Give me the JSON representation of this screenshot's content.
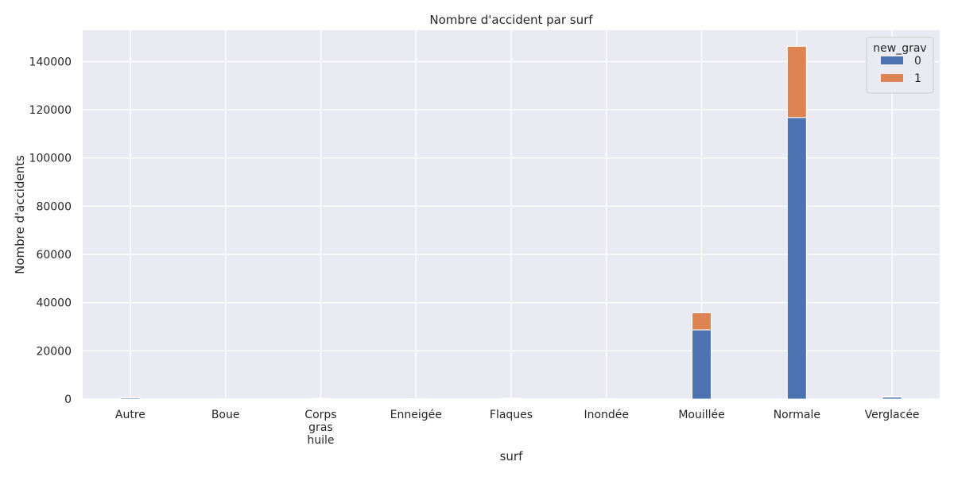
{
  "chart_data": {
    "type": "bar",
    "stacked": true,
    "title": "Nombre d'accident par surf",
    "xlabel": "surf",
    "ylabel": "Nombre d'accidents",
    "categories": [
      "Autre",
      "Boue",
      "Corps\ngras\nhuile",
      "Enneigée",
      "Flaques",
      "Inondée",
      "Mouillée",
      "Normale",
      "Verglacée"
    ],
    "series": [
      {
        "name": "0",
        "color": "#4c72b0",
        "values": [
          560,
          50,
          200,
          120,
          240,
          150,
          28700,
          116800,
          850
        ]
      },
      {
        "name": "1",
        "color": "#dd8452",
        "values": [
          140,
          10,
          60,
          30,
          70,
          50,
          7100,
          29500,
          250
        ]
      }
    ],
    "ylim": [
      0,
      153000
    ],
    "yticks": [
      0,
      20000,
      40000,
      60000,
      80000,
      100000,
      120000,
      140000
    ],
    "grid": true,
    "legend": {
      "title": "new_grav",
      "position": "top-right"
    }
  }
}
